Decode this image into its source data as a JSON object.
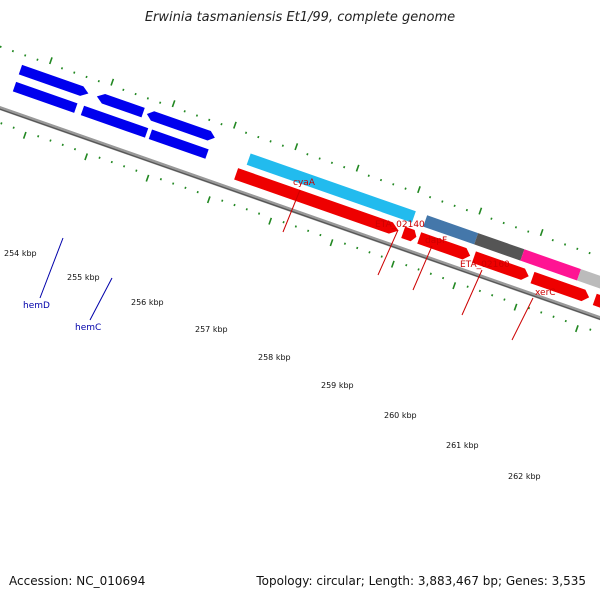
{
  "title": "Erwinia tasmaniensis Et1/99, complete genome",
  "accession": "Accession: NC_010694",
  "topology": "Topology: circular; Length: 3,883,467 bp; Genes: 3,535",
  "ticks": [
    "254 kbp",
    "255 kbp",
    "256 kbp",
    "257 kbp",
    "258 kbp",
    "259 kbp",
    "260 kbp",
    "261 kbp",
    "262 kbp"
  ],
  "gene_labels": {
    "cyaA": "cyaA",
    "ETA_02140": "ETA_02140",
    "dapF": "dapF",
    "ETA_02160": "ETA_02160",
    "xerC": "xerC",
    "hemD": "hemD",
    "hemC": "hemC"
  },
  "colors": {
    "blue_gene": "#0000ee",
    "cyan_gene": "#22bbee",
    "red_gene": "#ee0000",
    "steel_gene": "#4477aa",
    "dark_gray_gene": "#555555",
    "magenta_gene": "#ff1493",
    "light_gray_gene": "#bbbbbb",
    "backbone": "#888888",
    "tick_green": "#228822",
    "label_red": "#cc0000",
    "label_blue": "#0000aa"
  }
}
